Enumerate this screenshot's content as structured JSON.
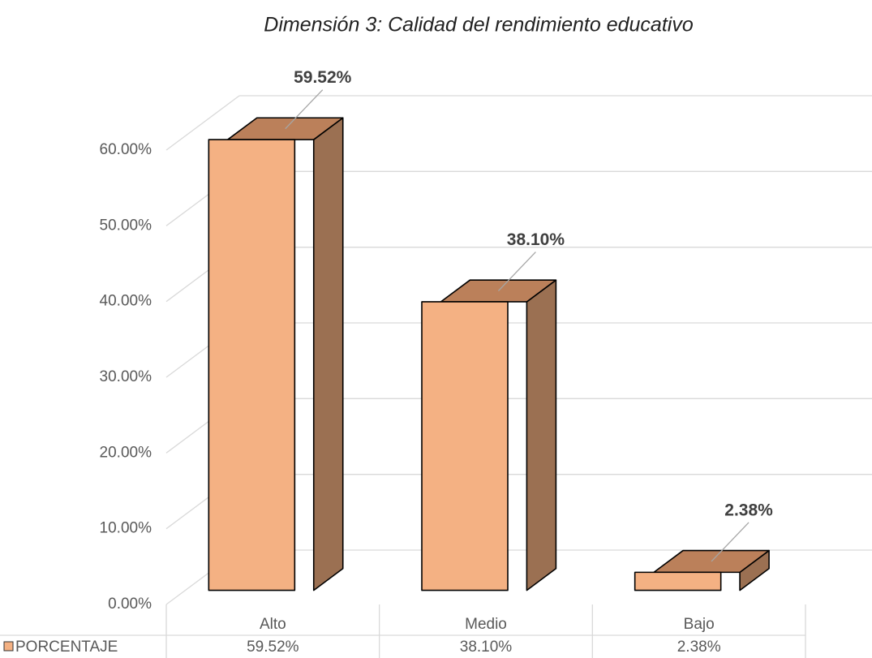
{
  "chart_data": {
    "type": "bar3d",
    "title": "Dimensión 3: Calidad del rendimiento educativo",
    "categories": [
      "Alto",
      "Medio",
      "Bajo"
    ],
    "series": [
      {
        "name": "PORCENTAJE",
        "color": "#f4b183",
        "side_color": "#9b7052",
        "top_color": "#bb805a",
        "values": [
          59.52,
          38.1,
          2.38
        ],
        "value_labels": [
          "59.52%",
          "38.10%",
          "2.38%"
        ]
      }
    ],
    "ylim": [
      0,
      60
    ],
    "yticks": [
      {
        "value": 0,
        "label": "0.00%"
      },
      {
        "value": 10,
        "label": "10.00%"
      },
      {
        "value": 20,
        "label": "20.00%"
      },
      {
        "value": 30,
        "label": "30.00%"
      },
      {
        "value": 40,
        "label": "40.00%"
      },
      {
        "value": 50,
        "label": "50.00%"
      },
      {
        "value": 60,
        "label": "60.00%"
      }
    ],
    "grid": true,
    "data_table": true
  }
}
